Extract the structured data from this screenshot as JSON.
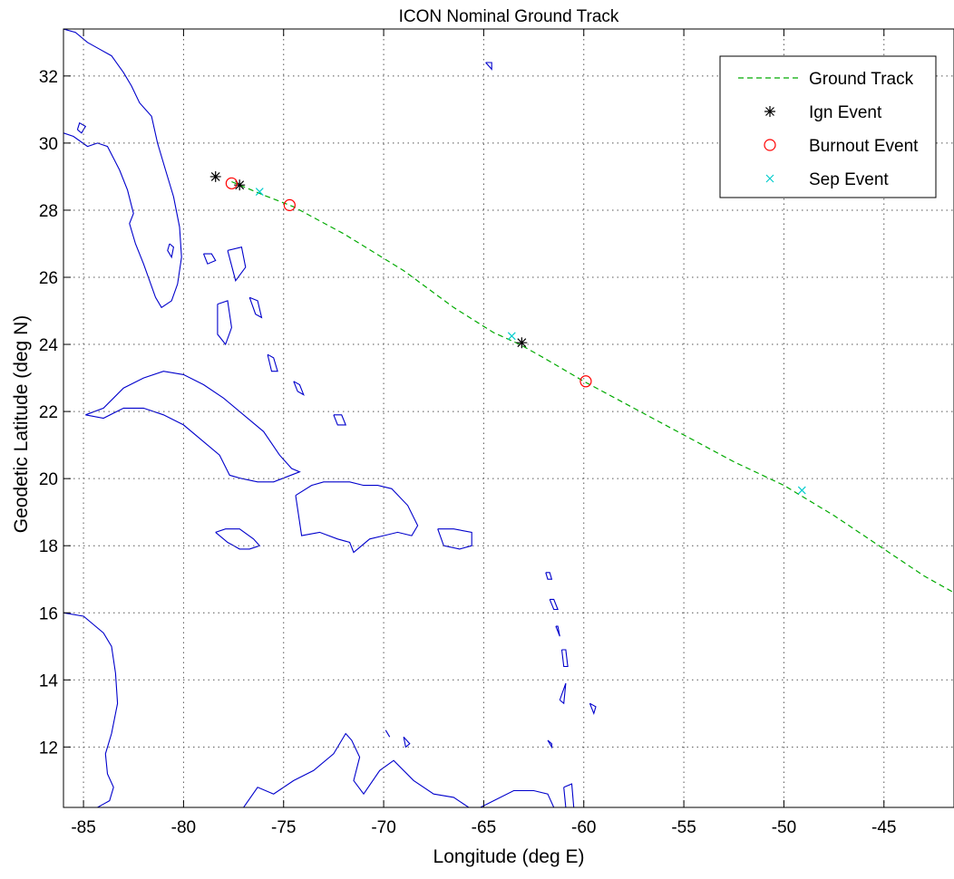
{
  "chart_data": {
    "type": "scatter",
    "title": "ICON Nominal Ground Track",
    "xlabel": "Longitude (deg E)",
    "ylabel": "Geodetic Latitude (deg N)",
    "xlim": [
      -86,
      -41.5
    ],
    "ylim": [
      10.2,
      33.4
    ],
    "xticks": [
      -85,
      -80,
      -75,
      -70,
      -65,
      -60,
      -55,
      -50,
      -45
    ],
    "yticks": [
      12,
      14,
      16,
      18,
      20,
      22,
      24,
      26,
      28,
      30,
      32
    ],
    "grid": true,
    "legend_position": "top-right",
    "series": [
      {
        "name": "Ground Track",
        "marker": "none",
        "line_style": "dashed",
        "color": "#00aa00",
        "x": [
          -77.6,
          -76.0,
          -74.5,
          -72.0,
          -69.0,
          -66.5,
          -64.5,
          -63.2,
          -62.0,
          -60.0,
          -57.5,
          -55.0,
          -52.5,
          -50.0,
          -47.5,
          -45.0,
          -43.0,
          -41.5
        ],
        "y": [
          28.85,
          28.45,
          28.1,
          27.3,
          26.2,
          25.1,
          24.35,
          24.0,
          23.6,
          22.9,
          22.1,
          21.3,
          20.5,
          19.8,
          18.9,
          17.9,
          17.1,
          16.6
        ]
      },
      {
        "name": "Ign Event",
        "marker": "star",
        "color": "#000000",
        "x": [
          -78.4,
          -77.2,
          -63.1
        ],
        "y": [
          29.0,
          28.75,
          24.05
        ]
      },
      {
        "name": "Burnout Event",
        "marker": "circle",
        "color": "#ff0000",
        "x": [
          -77.6,
          -74.7,
          -59.9
        ],
        "y": [
          28.8,
          28.15,
          22.9
        ]
      },
      {
        "name": "Sep Event",
        "marker": "x",
        "color": "#00cccc",
        "x": [
          -76.2,
          -63.6,
          -49.1
        ],
        "y": [
          28.55,
          24.25,
          19.65
        ]
      }
    ],
    "coastlines": {
      "color": "#0000cc",
      "features": [
        {
          "x": [
            -86.0,
            -85.5,
            -84.8,
            -84.3,
            -83.8,
            -83.2,
            -82.8,
            -82.5,
            -82.7,
            -82.4,
            -82.0,
            -81.7,
            -81.4,
            -81.1,
            -80.6,
            -80.3,
            -80.1,
            -80.2,
            -80.5,
            -80.9,
            -81.3,
            -81.6,
            -82.2,
            -82.6,
            -83.0,
            -83.6,
            -84.2,
            -84.8,
            -85.4,
            -86.0
          ],
          "y": [
            30.3,
            30.2,
            29.9,
            30.0,
            29.9,
            29.2,
            28.6,
            27.9,
            27.6,
            27.0,
            26.4,
            25.9,
            25.4,
            25.1,
            25.3,
            25.8,
            26.6,
            27.5,
            28.4,
            29.2,
            30.0,
            30.8,
            31.2,
            31.7,
            32.1,
            32.6,
            32.8,
            33.0,
            33.3,
            33.4
          ]
        },
        {
          "x": [
            -80.7,
            -80.5,
            -80.6,
            -80.8,
            -80.7
          ],
          "y": [
            27.0,
            26.9,
            26.6,
            26.8,
            27.0
          ]
        },
        {
          "x": [
            -85.3,
            -85.1,
            -84.9,
            -85.2,
            -85.3
          ],
          "y": [
            30.4,
            30.3,
            30.5,
            30.6,
            30.4
          ]
        },
        {
          "x": [
            -84.9,
            -84.0,
            -83.0,
            -82.0,
            -81.0,
            -80.0,
            -79.0,
            -78.0,
            -77.0,
            -76.0,
            -75.2,
            -74.6,
            -74.2,
            -75.5,
            -76.3,
            -77.1,
            -77.7,
            -78.2,
            -79.0,
            -80.0,
            -81.0,
            -82.0,
            -83.0,
            -84.0,
            -84.9
          ],
          "y": [
            21.9,
            22.1,
            22.7,
            23.0,
            23.2,
            23.1,
            22.8,
            22.4,
            21.9,
            21.4,
            20.7,
            20.3,
            20.2,
            19.9,
            19.9,
            20.0,
            20.1,
            20.7,
            21.1,
            21.6,
            21.9,
            22.1,
            22.1,
            21.8,
            21.9
          ]
        },
        {
          "x": [
            -78.4,
            -77.9,
            -77.2,
            -76.5,
            -76.2,
            -76.7,
            -77.2,
            -77.8,
            -78.4
          ],
          "y": [
            18.4,
            18.5,
            18.5,
            18.2,
            18.0,
            17.9,
            17.9,
            18.1,
            18.4
          ]
        },
        {
          "x": [
            -74.4,
            -73.6,
            -73.0,
            -72.4,
            -71.7,
            -71.0,
            -70.3,
            -69.6,
            -68.8,
            -68.3,
            -68.6,
            -69.3,
            -70.0,
            -70.7,
            -71.5,
            -71.7,
            -72.3,
            -73.2,
            -74.1,
            -74.4
          ],
          "y": [
            19.5,
            19.8,
            19.9,
            19.9,
            19.9,
            19.8,
            19.8,
            19.7,
            19.2,
            18.6,
            18.3,
            18.4,
            18.3,
            18.2,
            17.8,
            18.1,
            18.2,
            18.4,
            18.3,
            19.5
          ]
        },
        {
          "x": [
            -67.3,
            -66.5,
            -65.6,
            -65.6,
            -66.2,
            -67.0,
            -67.3
          ],
          "y": [
            18.5,
            18.5,
            18.4,
            18.0,
            17.9,
            18.0,
            18.5
          ]
        },
        {
          "x": [
            -79.0,
            -78.6,
            -78.4,
            -78.8,
            -79.0
          ],
          "y": [
            26.7,
            26.7,
            26.5,
            26.4,
            26.7
          ]
        },
        {
          "x": [
            -77.8,
            -77.1,
            -76.9,
            -77.4,
            -77.8
          ],
          "y": [
            26.8,
            26.9,
            26.3,
            25.9,
            26.8
          ]
        },
        {
          "x": [
            -78.3,
            -77.8,
            -77.6,
            -77.9,
            -78.3,
            -78.3
          ],
          "y": [
            25.2,
            25.3,
            24.5,
            24.0,
            24.3,
            25.2
          ]
        },
        {
          "x": [
            -76.7,
            -76.3,
            -76.1,
            -76.4,
            -76.7
          ],
          "y": [
            25.4,
            25.3,
            24.8,
            24.9,
            25.4
          ]
        },
        {
          "x": [
            -75.8,
            -75.5,
            -75.3,
            -75.6,
            -75.8
          ],
          "y": [
            23.7,
            23.6,
            23.2,
            23.2,
            23.7
          ]
        },
        {
          "x": [
            -74.5,
            -74.2,
            -74.0,
            -74.3,
            -74.5
          ],
          "y": [
            22.9,
            22.8,
            22.5,
            22.6,
            22.9
          ]
        },
        {
          "x": [
            -72.5,
            -72.1,
            -71.9,
            -72.3,
            -72.5
          ],
          "y": [
            21.9,
            21.9,
            21.6,
            21.6,
            21.9
          ]
        },
        {
          "x": [
            -64.9,
            -64.6,
            -64.6,
            -64.9
          ],
          "y": [
            32.4,
            32.4,
            32.2,
            32.4
          ]
        },
        {
          "x": [
            -61.9,
            -61.7,
            -61.6,
            -61.8,
            -61.9
          ],
          "y": [
            17.2,
            17.2,
            17.0,
            17.0,
            17.2
          ]
        },
        {
          "x": [
            -61.7,
            -61.5,
            -61.3,
            -61.5,
            -61.7
          ],
          "y": [
            16.4,
            16.4,
            16.1,
            16.1,
            16.4
          ]
        },
        {
          "x": [
            -61.4,
            -61.3,
            -61.2,
            -61.4
          ],
          "y": [
            15.6,
            15.6,
            15.3,
            15.6
          ]
        },
        {
          "x": [
            -61.1,
            -60.9,
            -60.8,
            -61.0,
            -61.1
          ],
          "y": [
            14.9,
            14.9,
            14.4,
            14.4,
            14.9
          ]
        },
        {
          "x": [
            -61.2,
            -61.0,
            -60.9,
            -61.2
          ],
          "y": [
            13.4,
            13.3,
            13.9,
            13.4
          ]
        },
        {
          "x": [
            -59.7,
            -59.4,
            -59.5,
            -59.7
          ],
          "y": [
            13.3,
            13.2,
            13.0,
            13.3
          ]
        },
        {
          "x": [
            -61.8,
            -61.6,
            -61.6,
            -61.8
          ],
          "y": [
            12.2,
            12.1,
            12.0,
            12.2
          ]
        },
        {
          "x": [
            -61.0,
            -60.6,
            -60.5,
            -60.9,
            -61.0
          ],
          "y": [
            10.8,
            10.9,
            10.2,
            10.2,
            10.8
          ]
        },
        {
          "x": [
            -86.0,
            -85.0,
            -84.0,
            -83.6,
            -83.4,
            -83.3,
            -83.6,
            -83.9,
            -83.8,
            -83.5,
            -83.7,
            -84.0,
            -84.3,
            -84.5
          ],
          "y": [
            16.0,
            15.9,
            15.4,
            15.0,
            14.2,
            13.3,
            12.4,
            11.8,
            11.2,
            10.8,
            10.4,
            10.3,
            10.2,
            10.2
          ]
        },
        {
          "x": [
            -77.0,
            -76.3,
            -75.5,
            -74.5,
            -73.5,
            -72.5,
            -71.9,
            -71.6,
            -71.2,
            -71.5,
            -71.0,
            -70.2,
            -69.5,
            -68.5,
            -67.5,
            -66.5,
            -65.5,
            -64.5,
            -63.5,
            -62.5,
            -61.8,
            -61.5
          ],
          "y": [
            10.2,
            10.8,
            10.6,
            11.0,
            11.3,
            11.8,
            12.4,
            12.2,
            11.7,
            11.0,
            10.6,
            11.3,
            11.6,
            11.0,
            10.6,
            10.5,
            10.1,
            10.4,
            10.7,
            10.7,
            10.6,
            10.2
          ]
        },
        {
          "x": [
            -69.9,
            -69.7,
            -69.9
          ],
          "y": [
            12.5,
            12.3,
            12.5
          ]
        },
        {
          "x": [
            -69.0,
            -68.7,
            -68.9,
            -69.0
          ],
          "y": [
            12.3,
            12.1,
            12.0,
            12.3
          ]
        }
      ]
    }
  }
}
